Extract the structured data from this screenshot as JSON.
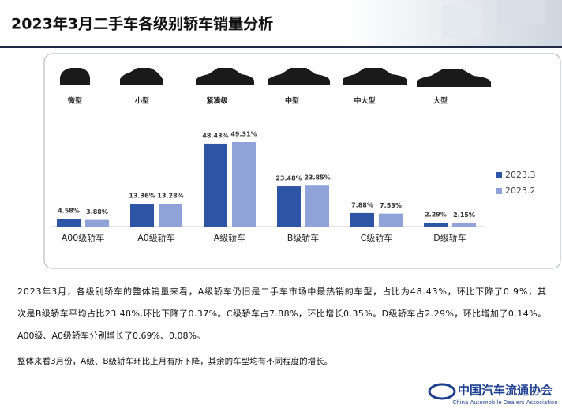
{
  "title": "2023年3月二手车各级别轿车销量分析",
  "car_types": [
    "微型",
    "小型",
    "紧凑级",
    "中型",
    "中大型",
    "大型"
  ],
  "chart_data": {
    "type": "bar",
    "categories": [
      "A00级轿车",
      "A0级轿车",
      "A级轿车",
      "B级轿车",
      "C级轿车",
      "D级轿车"
    ],
    "series": [
      {
        "name": "2023.3",
        "color": "#2e55a5",
        "values": [
          4.58,
          13.36,
          48.43,
          23.48,
          7.88,
          2.29
        ],
        "value_labels": [
          "4.58%",
          "13.36%",
          "48.43%",
          "23.48%",
          "7.88%",
          "2.29%"
        ]
      },
      {
        "name": "2023.2",
        "color": "#8fa3d8",
        "values": [
          3.88,
          13.28,
          49.31,
          23.85,
          7.53,
          2.15
        ],
        "value_labels": [
          "3.88%",
          "13.28%",
          "49.31%",
          "23.85%",
          "7.53%",
          "2.15%"
        ]
      }
    ]
  },
  "paragraphs": [
    "2023年3月，各级别轿车的整体销量来看，A级轿车仍旧是二手车市场中最热销的车型，占比为48.43%，环比下降了0.9%，其",
    "次是B级轿车平均占比23.48%,环比下降了0.37%。C级轿车占7.88%，环比增长0.35%。D级轿车占2.29%，环比增加了0.14%。",
    "A00级、A0级轿车分别增长了0.69%、0.08%。",
    "整体来看3月份，A级、B级轿车环比上月有所下降，其余的车型均有不同程度的增长。"
  ],
  "logo": {
    "name": "中国汽车流通协会",
    "subtitle": "China Automobile Dealers Association"
  }
}
